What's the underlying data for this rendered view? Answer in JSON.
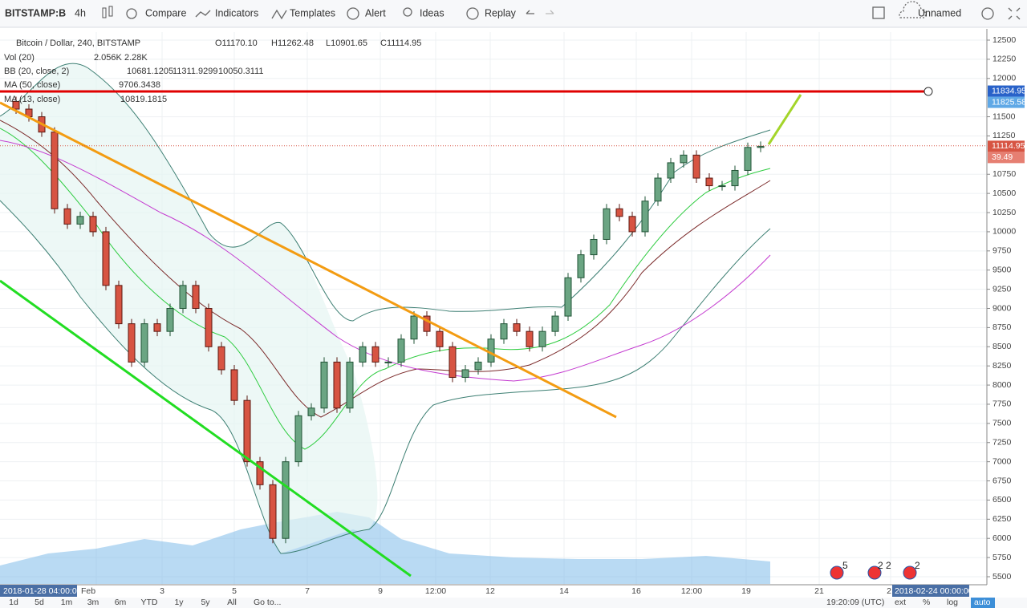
{
  "toolbar": {
    "symbol": "BITSTAMP:B",
    "interval": "4h",
    "buttons": [
      "Compare",
      "Indicators",
      "Templates",
      "Alert",
      "Ideas",
      "Replay"
    ],
    "layout": "Unnamed"
  },
  "legend": {
    "title": "Bitcoin / Dollar, 240, BITSTAMP",
    "ohlc": [
      "O11170.10",
      "H11262.48",
      "L10901.65",
      "C11114.95"
    ],
    "indicators": [
      {
        "name": "Vol (20)",
        "values": [
          "2.056K",
          "2.28K"
        ]
      },
      {
        "name": "BB (20, close, 2)",
        "values": [
          "10681.1205",
          "11311.9299",
          "10050.3111"
        ]
      },
      {
        "name": "MA (50, close)",
        "values": [
          "9706.3438"
        ]
      },
      {
        "name": "MA (13, close)",
        "values": [
          "10819.1815"
        ]
      }
    ]
  },
  "price_axis": {
    "ylim": [
      5500,
      12500
    ],
    "yticks": [
      12500,
      12250,
      12000,
      11500,
      11250,
      10750,
      10500,
      10250,
      10000,
      9750,
      9500,
      9250,
      9000,
      8750,
      8500,
      8250,
      8000,
      7750,
      7500,
      7250,
      7000,
      6750,
      6500,
      6250,
      6000,
      5750,
      5500
    ],
    "badges": [
      {
        "value": 11834.95,
        "label": "11834.95"
      },
      {
        "value": 11825.58,
        "label": "11825.58"
      },
      {
        "value": 11114.95,
        "label": "11114.95"
      },
      {
        "label": "39.49"
      }
    ]
  },
  "candles": [
    11700,
    11600,
    11500,
    11300,
    10300,
    10100,
    10200,
    10000,
    9300,
    8800,
    8300,
    8800,
    8700,
    9000,
    9300,
    9000,
    8500,
    8200,
    7800,
    7000,
    6700,
    6000,
    7000,
    7600,
    7700,
    8300,
    7700,
    8300,
    8500,
    8300,
    8300,
    8600,
    8900,
    8700,
    8500,
    8100,
    8200,
    8300,
    8600,
    8800,
    8700,
    8500,
    8700,
    8900,
    9400,
    9700,
    9900,
    10300,
    10200,
    10000,
    10400,
    10700,
    10900,
    11000,
    10700,
    10600,
    10600,
    10800,
    11100,
    11114.95
  ],
  "time_axis": {
    "start": "2018-01-28 04:00:00",
    "labels": [
      "Feb",
      "3",
      "5",
      "7",
      "9",
      "12:00",
      "12",
      "14",
      "16",
      "12:00",
      "19",
      "21",
      "2"
    ],
    "end": "2018-02-24 00:00:00"
  },
  "bottom_bar": {
    "ranges": [
      "1d",
      "5d",
      "1m",
      "3m",
      "6m",
      "YTD",
      "1y",
      "5y",
      "All"
    ],
    "goto": "Go to...",
    "clock": "19:20:09 (UTC)",
    "options": [
      "ext",
      "%",
      "log",
      "auto"
    ]
  },
  "event_badges": [
    "5",
    "2 2",
    "2"
  ]
}
